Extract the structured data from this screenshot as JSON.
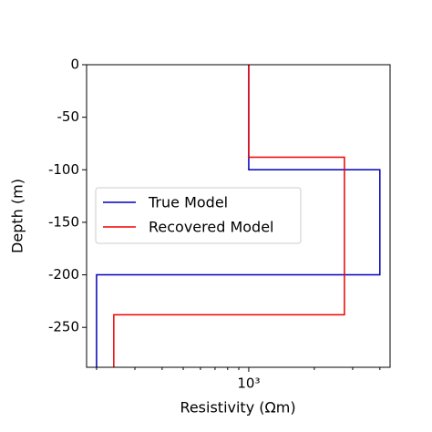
{
  "chart_data": {
    "type": "line",
    "xlabel": "Resistivity (Ωm)",
    "ylabel": "Depth (m)",
    "xscale": "log",
    "xlim": [
      180,
      4456
    ],
    "ylim": [
      -288,
      0
    ],
    "xticks": [
      {
        "value": 1000,
        "label": "10³"
      }
    ],
    "xminorticks": [
      200,
      300,
      400,
      500,
      600,
      700,
      800,
      900,
      2000,
      3000,
      4000
    ],
    "yticks": [
      0,
      -50,
      -100,
      -150,
      -200,
      -250
    ],
    "grid": false,
    "legend": "center left",
    "series": [
      {
        "name": "True Model",
        "color": "#0000bb",
        "x": [
          1000,
          1000,
          4000,
          4000,
          200,
          200
        ],
        "y": [
          0,
          -100,
          -100,
          -200,
          -200,
          -288
        ]
      },
      {
        "name": "Recovered Model",
        "color": "#ee0000",
        "x": [
          1000,
          1000,
          2750,
          2750,
          240,
          240
        ],
        "y": [
          0,
          -88,
          -88,
          -238,
          -238,
          -288
        ]
      }
    ]
  }
}
